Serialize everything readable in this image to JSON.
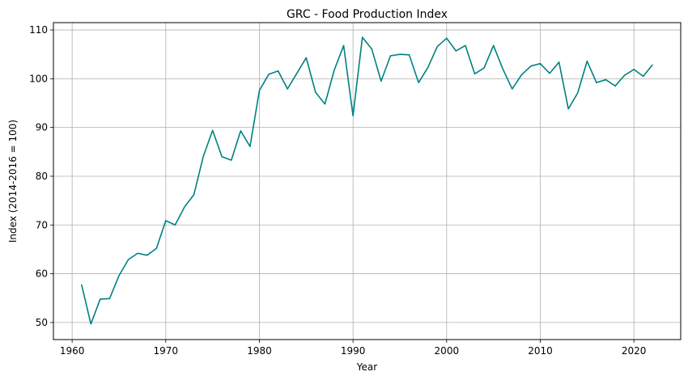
{
  "chart_data": {
    "type": "line",
    "title": "GRC - Food Production Index",
    "xlabel": "Year",
    "ylabel": "Index (2014-2016 = 100)",
    "xlim": [
      1958,
      2025
    ],
    "ylim": [
      46.5,
      111.5
    ],
    "xticks": [
      1960,
      1970,
      1980,
      1990,
      2000,
      2010,
      2020
    ],
    "yticks": [
      50,
      60,
      70,
      80,
      90,
      100,
      110
    ],
    "grid": true,
    "color": "#008080",
    "series": [
      {
        "x": [
          1961,
          1962,
          1963,
          1964,
          1965,
          1966,
          1967,
          1968,
          1969,
          1970,
          1971,
          1972,
          1973,
          1974,
          1975,
          1976,
          1977,
          1978,
          1979,
          1980,
          1981,
          1982,
          1983,
          1984,
          1985,
          1986,
          1987,
          1988,
          1989,
          1990,
          1991,
          1992,
          1993,
          1994,
          1995,
          1996,
          1997,
          1998,
          1999,
          2000,
          2001,
          2002,
          2003,
          2004,
          2005,
          2006,
          2007,
          2008,
          2009,
          2010,
          2011,
          2012,
          2013,
          2014,
          2015,
          2016,
          2017,
          2018,
          2019,
          2020,
          2021,
          2022
        ],
        "values": [
          57.8,
          49.7,
          54.8,
          54.9,
          59.6,
          62.9,
          64.2,
          63.8,
          65.2,
          70.9,
          70.0,
          73.7,
          76.2,
          84.0,
          89.4,
          84.0,
          83.3,
          89.3,
          86.1,
          97.6,
          100.9,
          101.6,
          97.9,
          101.1,
          104.3,
          97.2,
          94.8,
          101.8,
          106.8,
          92.4,
          108.5,
          106.1,
          99.5,
          104.7,
          105.0,
          104.9,
          99.2,
          102.3,
          106.6,
          108.3,
          105.7,
          106.8,
          101.0,
          102.2,
          106.8,
          102.0,
          97.9,
          100.8,
          102.6,
          103.1,
          101.1,
          103.4,
          93.8,
          97.1,
          103.6,
          99.2,
          99.8,
          98.5,
          100.7,
          101.9,
          100.5,
          102.9
        ]
      }
    ]
  }
}
